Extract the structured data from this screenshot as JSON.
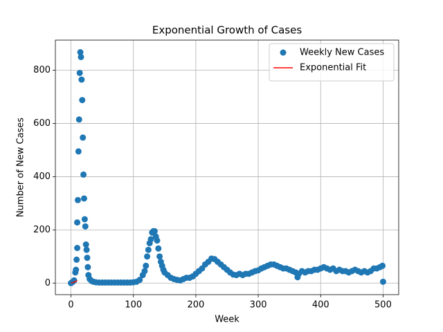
{
  "chart_data": {
    "type": "scatter",
    "title": "Exponential Growth of Cases",
    "x_label": "Week",
    "y_label": "Number of New Cases",
    "xlim": [
      -25,
      525
    ],
    "ylim": [
      -43.5,
      913.5
    ],
    "xticks": [
      0,
      100,
      200,
      300,
      400,
      500
    ],
    "yticks": [
      0,
      200,
      400,
      600,
      800
    ],
    "grid": true,
    "legend": "upper right",
    "series": [
      {
        "name": "Weekly New Cases",
        "color": "#1f77b4",
        "kind": "scatter",
        "x": [
          0,
          2,
          3,
          5,
          7,
          8,
          9,
          10,
          10,
          11,
          12,
          13,
          14,
          15,
          16,
          17,
          18,
          19,
          20,
          21,
          22,
          23,
          24,
          25,
          26,
          27,
          28,
          30,
          33,
          36,
          40,
          45,
          50,
          55,
          60,
          65,
          70,
          75,
          80,
          85,
          90,
          95,
          100,
          105,
          110,
          115,
          118,
          120,
          122,
          124,
          126,
          128,
          130,
          132,
          134,
          136,
          138,
          140,
          142,
          144,
          146,
          148,
          150,
          155,
          160,
          165,
          170,
          175,
          180,
          185,
          190,
          195,
          200,
          205,
          210,
          215,
          220,
          225,
          230,
          235,
          240,
          245,
          250,
          255,
          260,
          265,
          270,
          275,
          280,
          285,
          290,
          295,
          300,
          305,
          310,
          315,
          320,
          325,
          330,
          335,
          340,
          345,
          350,
          355,
          360,
          363,
          365,
          370,
          375,
          380,
          385,
          390,
          395,
          400,
          405,
          410,
          415,
          420,
          425,
          430,
          435,
          440,
          445,
          450,
          455,
          460,
          465,
          470,
          475,
          480,
          485,
          490,
          495,
          499,
          500
        ],
        "values": [
          0,
          3,
          5,
          10,
          40,
          50,
          88,
          132,
          228,
          312,
          495,
          615,
          790,
          868,
          850,
          765,
          688,
          547,
          408,
          318,
          240,
          213,
          145,
          125,
          95,
          60,
          30,
          15,
          8,
          5,
          3,
          2,
          2,
          2,
          2,
          2,
          2,
          2,
          2,
          2,
          2,
          2,
          3,
          5,
          12,
          30,
          45,
          65,
          100,
          125,
          150,
          165,
          190,
          195,
          195,
          175,
          160,
          130,
          100,
          80,
          65,
          50,
          40,
          30,
          20,
          15,
          12,
          10,
          15,
          20,
          20,
          25,
          35,
          45,
          55,
          70,
          80,
          92,
          90,
          80,
          70,
          60,
          50,
          40,
          32,
          30,
          35,
          30,
          35,
          35,
          40,
          45,
          48,
          55,
          60,
          65,
          70,
          70,
          65,
          60,
          55,
          55,
          50,
          45,
          40,
          22,
          35,
          45,
          40,
          45,
          45,
          50,
          50,
          55,
          60,
          55,
          50,
          55,
          45,
          50,
          45,
          45,
          40,
          45,
          50,
          45,
          40,
          45,
          40,
          45,
          55,
          55,
          60,
          65,
          5
        ]
      },
      {
        "name": "Exponential Fit",
        "color": "#ff0000",
        "kind": "line",
        "x": [
          0,
          2,
          4,
          6,
          8,
          10
        ],
        "values": [
          1,
          1.6,
          2.5,
          4,
          6.3,
          10
        ]
      }
    ]
  }
}
